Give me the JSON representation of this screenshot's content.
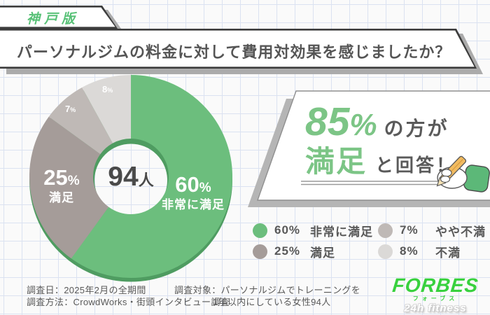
{
  "badge": {
    "label": "神戸版",
    "color": "#58c177"
  },
  "header": {
    "title": "パーソナルジムの料金に対して費用対効果を感じましたか？"
  },
  "chart_data": {
    "type": "pie",
    "title": "パーソナルジムの料金に対して費用対効果を感じましたか？",
    "subtitle_badge": "神戸版",
    "total_respondents": {
      "value": "94",
      "unit": "人"
    },
    "segments": [
      {
        "pct": 60,
        "value": "60",
        "sign": "%",
        "label": "非常に満足",
        "color": "#6cbe7d",
        "pct_display": "60%"
      },
      {
        "pct": 25,
        "value": "25",
        "sign": "%",
        "label": "満足",
        "color": "#a59c99",
        "pct_display": "25%"
      },
      {
        "pct": 7,
        "value": "7",
        "sign": "%",
        "label": "やや不満",
        "color": "#bfb9b6",
        "pct_display": "7%"
      },
      {
        "pct": 8,
        "value": "8",
        "sign": "%",
        "label": "不満",
        "color": "#dbd9d7",
        "pct_display": "8%"
      }
    ],
    "rim_color": "#4f9c61",
    "start_angle_deg": -90,
    "direction": "clockwise",
    "legend_position": "bottom-right"
  },
  "highlight": {
    "value": "85",
    "sign": "%",
    "suffix1": "の方が",
    "word": "満足",
    "suffix2": "と回答！",
    "accent_color": "#7cc586"
  },
  "footer": {
    "survey_date": "調査日：2025年2月の全期間",
    "survey_method": "調査方法：CrowdWorks・街頭インタビュー調査",
    "survey_target_line1": "調査対象：パーソナルジムでトレーニングを",
    "survey_target_line2": "1年以内にしている女性94人"
  },
  "logo": {
    "brand": "FORBES",
    "kana": "フォーブス",
    "sub": "24h fitness",
    "color": "#38d13e"
  }
}
